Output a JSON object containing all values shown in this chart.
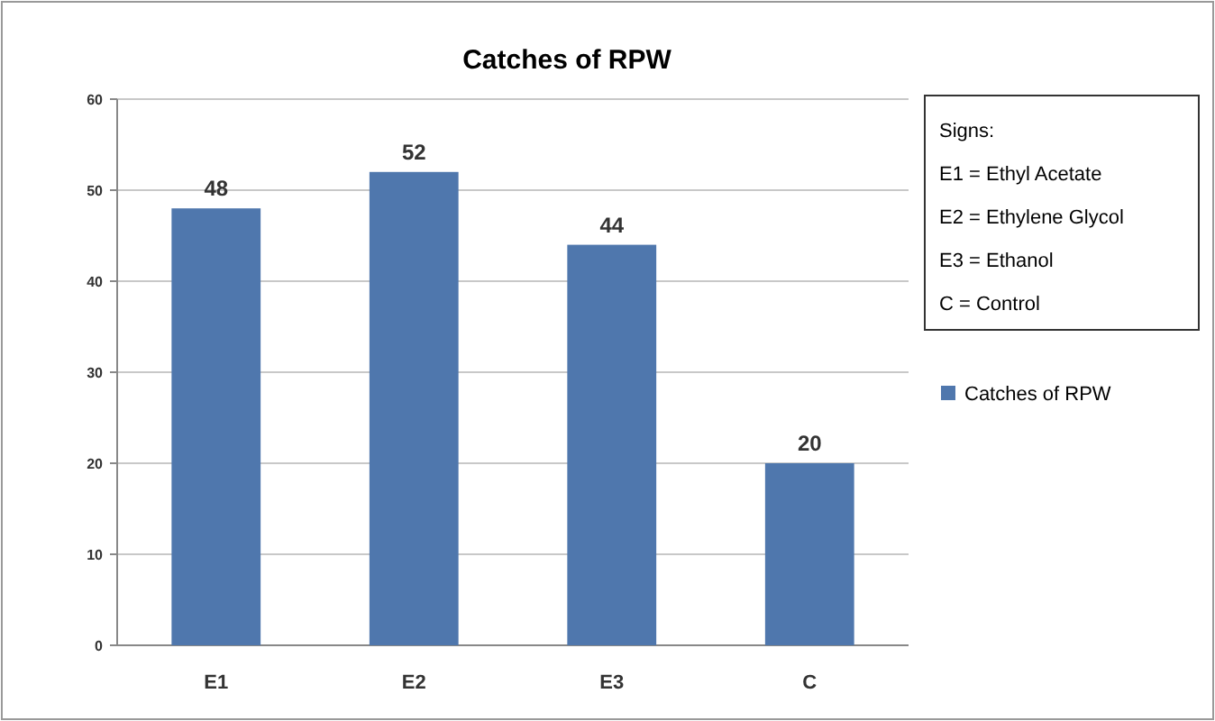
{
  "chart_data": {
    "type": "bar",
    "title": "Catches of RPW",
    "categories": [
      "E1",
      "E2",
      "E3",
      "C"
    ],
    "series": [
      {
        "name": "Catches of RPW",
        "color": "#4f77ad",
        "values": [
          48,
          52,
          44,
          20
        ]
      }
    ],
    "ylim": [
      0,
      60
    ],
    "yticks": [
      0,
      10,
      20,
      30,
      40,
      50,
      60
    ],
    "grid": "y",
    "legend": "right",
    "data_labels": true,
    "annotations": [
      "Signs:",
      "E1 = Ethyl Acetate",
      "E2 = Ethylene Glycol",
      "E3 = Ethanol",
      "C = Control"
    ]
  }
}
